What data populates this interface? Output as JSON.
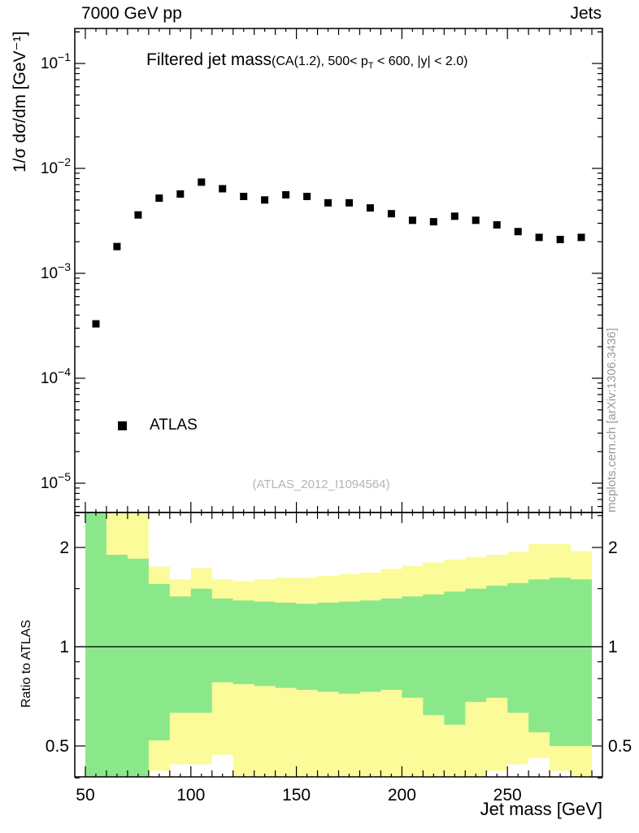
{
  "header": {
    "left": "7000 GeV pp",
    "right": "Jets"
  },
  "side_text": "mcplots.cern.ch [arXiv:1306.3436]",
  "main_panel": {
    "title": "Filtered jet mass",
    "subtitle_pre": "(CA(1.2), 500< p",
    "subtitle_sub": "T",
    "subtitle_post": " < 600, |y| < 2.0)",
    "y_axis_label": "1/σ dσ/dm [GeV⁻¹]",
    "legend_label": "ATLAS",
    "watermark": "(ATLAS_2012_I1094564)"
  },
  "ratio_panel": {
    "y_axis_label": "Ratio to ATLAS",
    "tick_labels": [
      "2",
      "1",
      "0.5"
    ]
  },
  "x_axis": {
    "label": "Jet mass [GeV]",
    "ticks": [
      50,
      100,
      150,
      200,
      250
    ],
    "range": [
      45,
      295
    ]
  },
  "colors": {
    "marker": "#000000",
    "band_green": "#8ae88a",
    "band_yellow": "#fbfb9a",
    "axis": "#000000",
    "side_text_gray": "#9a9a9a",
    "watermark_gray": "#b4b4b4"
  },
  "chart_data": {
    "type": "scatter",
    "title": "Filtered jet mass (CA(1.2), 500< pT < 600, |y| < 2.0)",
    "xlabel": "Jet mass [GeV]",
    "ylabel": "1/σ dσ/dm [GeV⁻¹]",
    "x_range": [
      45,
      295
    ],
    "y_scale": "log",
    "y_range": [
      5.3e-06,
      0.215
    ],
    "y_tick_exponents": [
      -1,
      -2,
      -3,
      -4,
      -5
    ],
    "legend_position": "inside-left-lower",
    "grid": false,
    "series": [
      {
        "name": "ATLAS",
        "marker": "filled-square",
        "x": [
          55,
          65,
          75,
          85,
          95,
          105,
          115,
          125,
          135,
          145,
          155,
          165,
          175,
          185,
          195,
          205,
          215,
          225,
          235,
          245,
          255,
          265,
          275,
          285
        ],
        "y": [
          0.00033,
          0.0018,
          0.0036,
          0.0052,
          0.0057,
          0.0074,
          0.0064,
          0.0054,
          0.005,
          0.0056,
          0.0054,
          0.0047,
          0.0047,
          0.0042,
          0.0037,
          0.0032,
          0.0031,
          0.0035,
          0.0032,
          0.0029,
          0.0025,
          0.0022,
          0.0021,
          0.0022
        ]
      }
    ],
    "ratio": {
      "y_scale": "log",
      "y_range": [
        0.397,
        2.53
      ],
      "line_at": 1,
      "tick_values": [
        2,
        1,
        0.5
      ],
      "minor_ticks": [
        0.4,
        0.6,
        0.7,
        0.8,
        0.9,
        1.5,
        2.5
      ],
      "bin_width": 10,
      "bins": [
        50,
        60,
        70,
        80,
        90,
        100,
        110,
        120,
        130,
        140,
        150,
        160,
        170,
        180,
        190,
        200,
        210,
        220,
        230,
        240,
        250,
        260,
        270,
        280
      ],
      "yellow_lo": [
        0.38,
        0.38,
        0.38,
        0.42,
        0.44,
        0.44,
        0.47,
        0.4,
        0.38,
        0.38,
        0.38,
        0.38,
        0.38,
        0.38,
        0.38,
        0.38,
        0.38,
        0.38,
        0.4,
        0.42,
        0.44,
        0.46,
        0.42,
        0.4
      ],
      "yellow_hi": [
        2.6,
        2.6,
        2.6,
        1.75,
        1.6,
        1.73,
        1.6,
        1.58,
        1.6,
        1.62,
        1.62,
        1.64,
        1.66,
        1.68,
        1.72,
        1.76,
        1.8,
        1.84,
        1.87,
        1.9,
        1.94,
        2.05,
        2.05,
        1.95
      ],
      "green_lo": [
        0.38,
        0.38,
        0.38,
        0.52,
        0.63,
        0.63,
        0.78,
        0.77,
        0.76,
        0.75,
        0.74,
        0.73,
        0.72,
        0.73,
        0.74,
        0.7,
        0.62,
        0.58,
        0.68,
        0.7,
        0.63,
        0.55,
        0.5,
        0.5
      ],
      "green_hi": [
        2.6,
        1.9,
        1.85,
        1.55,
        1.42,
        1.5,
        1.4,
        1.38,
        1.37,
        1.36,
        1.35,
        1.36,
        1.37,
        1.38,
        1.4,
        1.42,
        1.44,
        1.47,
        1.5,
        1.53,
        1.56,
        1.6,
        1.62,
        1.6
      ]
    }
  }
}
